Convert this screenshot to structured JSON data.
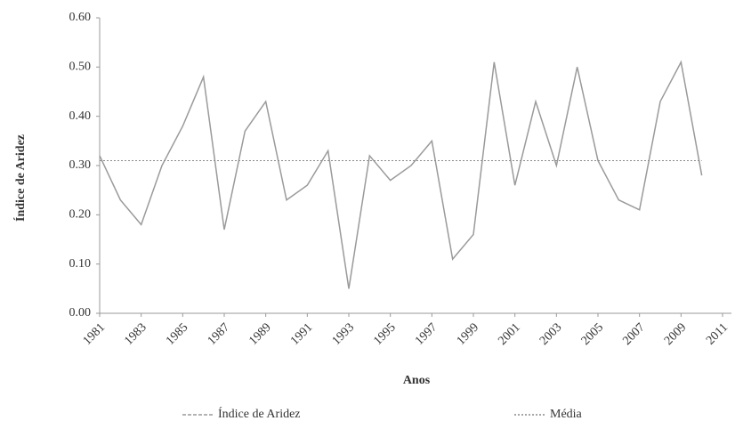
{
  "chart_data": {
    "type": "line",
    "y_label": "Índice de Aridez",
    "x_label": "Anos",
    "x": [
      1981,
      1982,
      1983,
      1984,
      1985,
      1986,
      1987,
      1988,
      1989,
      1990,
      1991,
      1992,
      1993,
      1994,
      1995,
      1996,
      1997,
      1998,
      1999,
      2000,
      2001,
      2002,
      2003,
      2004,
      2005,
      2006,
      2007,
      2008,
      2009,
      2010
    ],
    "series": [
      {
        "name": "Índice de Aridez",
        "color": "#9a9a9a",
        "values": [
          0.32,
          0.23,
          0.18,
          0.3,
          0.38,
          0.48,
          0.17,
          0.37,
          0.43,
          0.23,
          0.26,
          0.33,
          0.05,
          0.32,
          0.27,
          0.3,
          0.35,
          0.11,
          0.16,
          0.51,
          0.26,
          0.43,
          0.3,
          0.5,
          0.31,
          0.23,
          0.21,
          0.43,
          0.51,
          0.28
        ]
      },
      {
        "name": "Média",
        "color": "#8a8a8a",
        "values": [
          0.31,
          0.31,
          0.31,
          0.31,
          0.31,
          0.31,
          0.31,
          0.31,
          0.31,
          0.31,
          0.31,
          0.31,
          0.31,
          0.31,
          0.31,
          0.31,
          0.31,
          0.31,
          0.31,
          0.31,
          0.31,
          0.31,
          0.31,
          0.31,
          0.31,
          0.31,
          0.31,
          0.31,
          0.31,
          0.31
        ]
      }
    ],
    "xlim": [
      1981,
      2011
    ],
    "xticks": [
      1981,
      1983,
      1985,
      1987,
      1989,
      1991,
      1993,
      1995,
      1997,
      1999,
      2001,
      2003,
      2005,
      2007,
      2009,
      2011
    ],
    "ylim": [
      0,
      0.6
    ],
    "yticks": [
      {
        "value": 0,
        "label": "0.00"
      },
      {
        "value": 0.1,
        "label": "0.10"
      },
      {
        "value": 0.2,
        "label": "0.20"
      },
      {
        "value": 0.3,
        "label": "0.30"
      },
      {
        "value": 0.4,
        "label": "0.40"
      },
      {
        "value": 0.5,
        "label": "0.50"
      },
      {
        "value": 0.6,
        "label": "0.60"
      }
    ]
  }
}
